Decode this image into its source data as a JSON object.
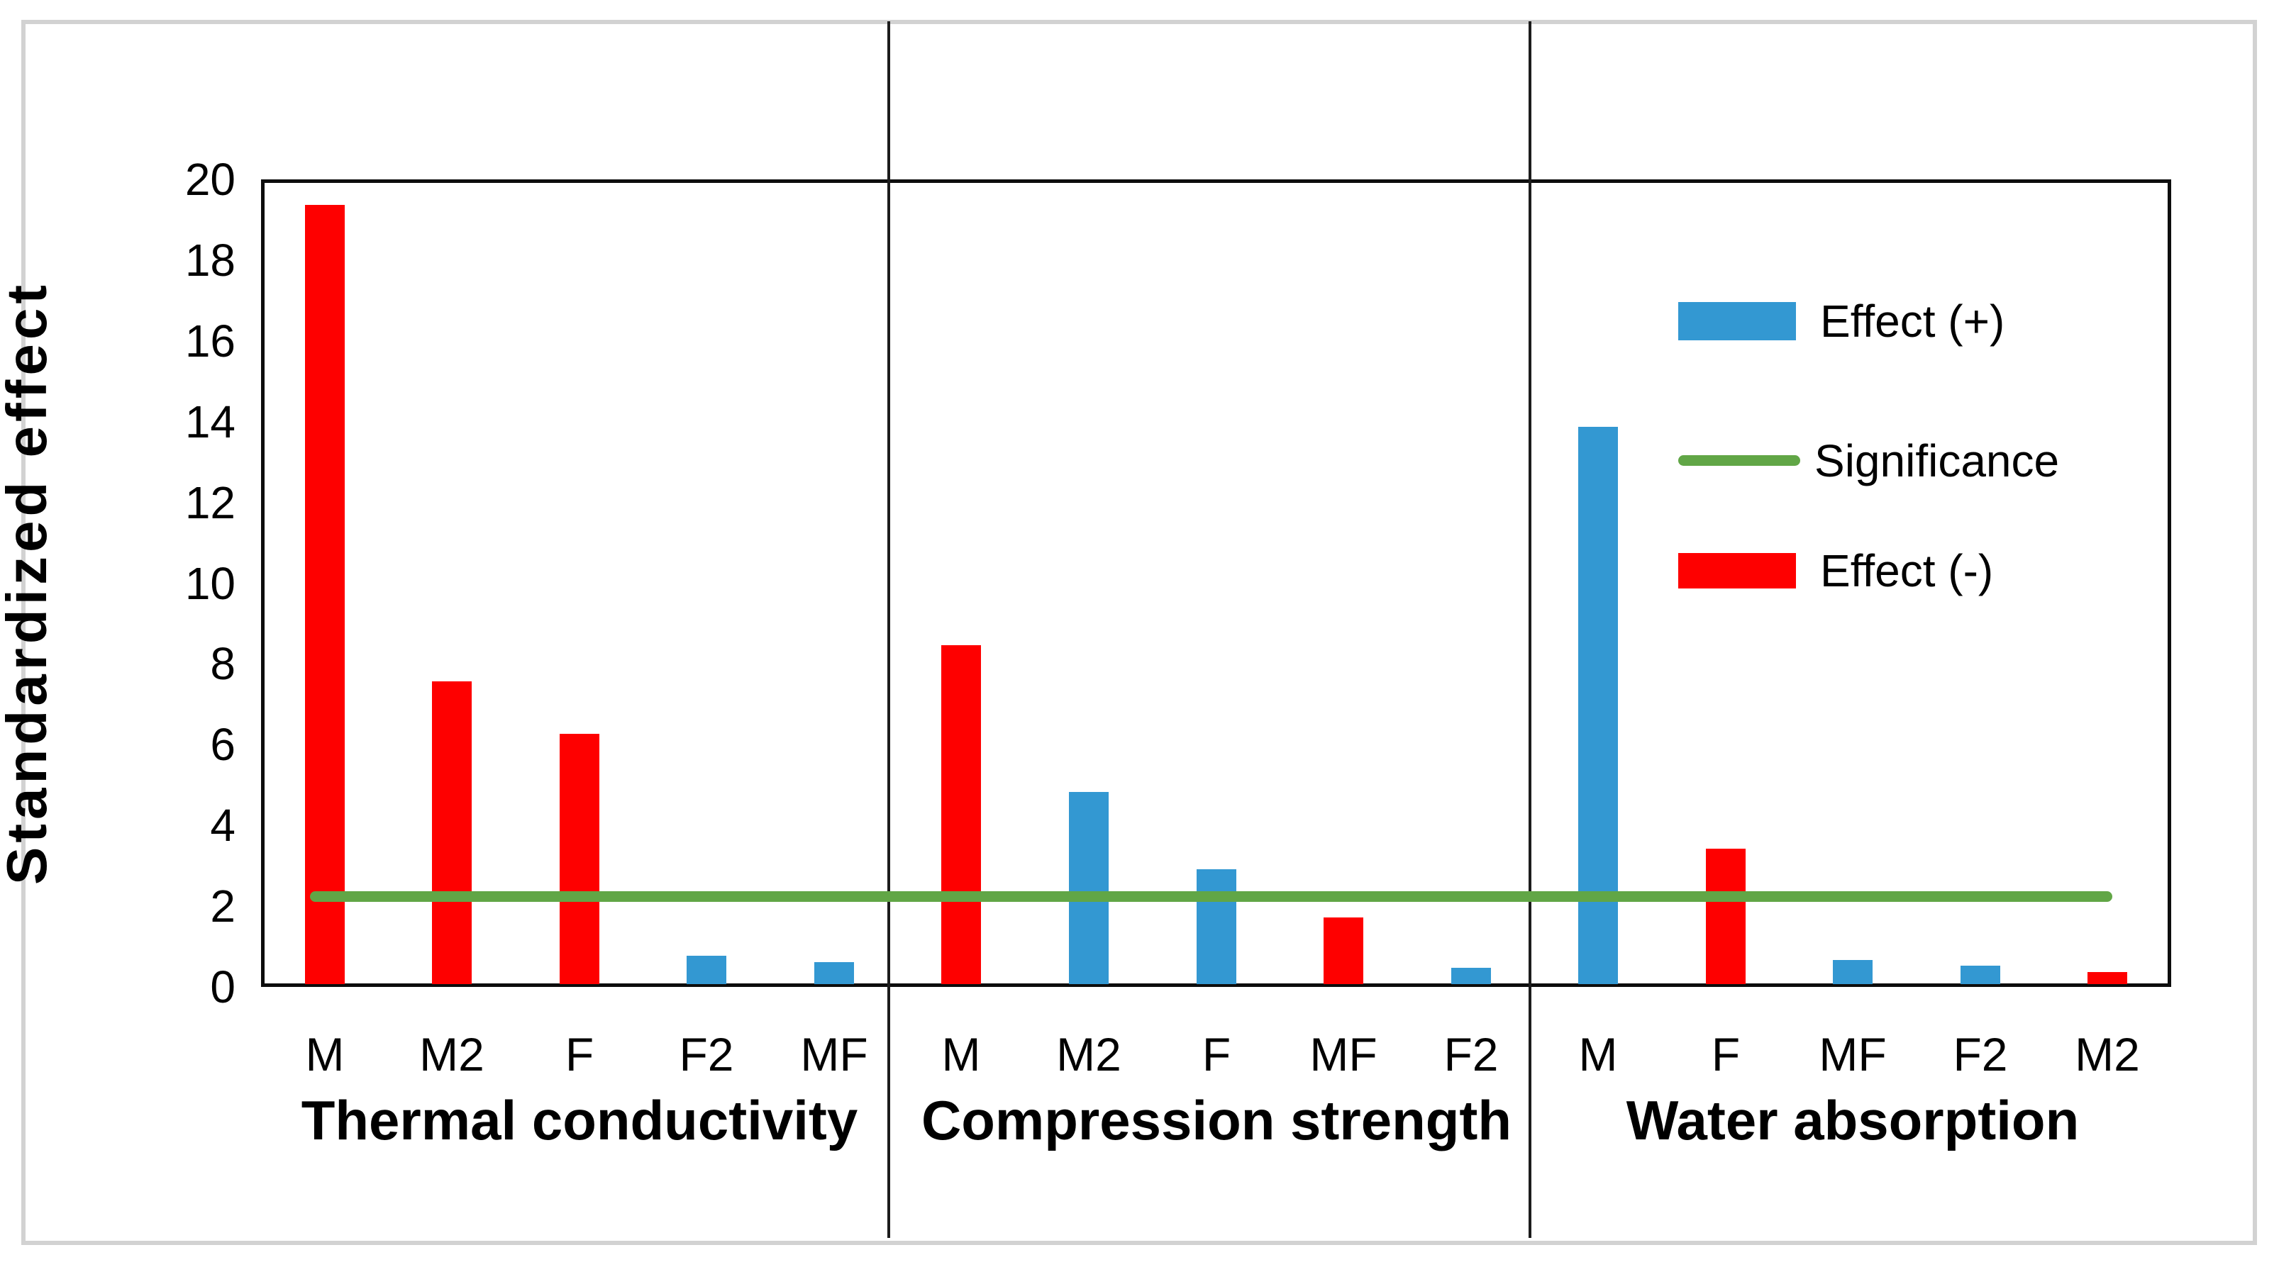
{
  "chart_data": {
    "type": "bar",
    "title": "",
    "xlabel": "",
    "ylabel": "Standardized effect",
    "ylim": [
      0,
      20
    ],
    "y_ticks": [
      0,
      2,
      4,
      6,
      8,
      10,
      12,
      14,
      16,
      18,
      20
    ],
    "grid": false,
    "legend_position": "inside-top-right",
    "colors": {
      "positive": "#3398d2",
      "negative": "#fe0000",
      "significance": "#61a646"
    },
    "significance_line": {
      "label": "Significance",
      "value": 2.25
    },
    "groups": [
      {
        "name": "Thermal conductivity",
        "bars": [
          {
            "factor": "M",
            "value": 19.3,
            "effect": "negative"
          },
          {
            "factor": "M2",
            "value": 7.5,
            "effect": "negative"
          },
          {
            "factor": "F",
            "value": 6.2,
            "effect": "negative"
          },
          {
            "factor": "F2",
            "value": 0.7,
            "effect": "positive"
          },
          {
            "factor": "MF",
            "value": 0.55,
            "effect": "positive"
          }
        ]
      },
      {
        "name": "Compression strength",
        "bars": [
          {
            "factor": "M",
            "value": 8.4,
            "effect": "negative"
          },
          {
            "factor": "M2",
            "value": 4.75,
            "effect": "positive"
          },
          {
            "factor": "F",
            "value": 2.85,
            "effect": "positive"
          },
          {
            "factor": "MF",
            "value": 1.65,
            "effect": "negative"
          },
          {
            "factor": "F2",
            "value": 0.4,
            "effect": "positive"
          }
        ]
      },
      {
        "name": "Water absorption",
        "bars": [
          {
            "factor": "M",
            "value": 13.8,
            "effect": "positive"
          },
          {
            "factor": "F",
            "value": 3.35,
            "effect": "negative"
          },
          {
            "factor": "MF",
            "value": 0.6,
            "effect": "positive"
          },
          {
            "factor": "F2",
            "value": 0.45,
            "effect": "positive"
          },
          {
            "factor": "M2",
            "value": 0.3,
            "effect": "negative"
          }
        ]
      }
    ],
    "legend": [
      {
        "label": "Effect (+)",
        "marker": "box",
        "color": "#3398d2"
      },
      {
        "label": "Significance",
        "marker": "line",
        "color": "#61a646"
      },
      {
        "label": "Effect (-)",
        "marker": "box",
        "color": "#fe0000"
      }
    ]
  }
}
